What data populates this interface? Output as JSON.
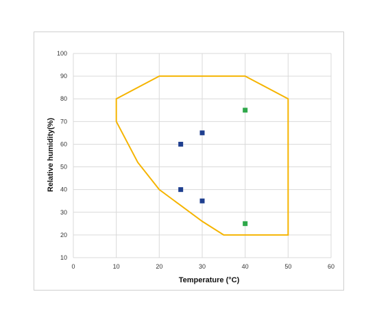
{
  "chart_data": {
    "type": "scatter",
    "title": "",
    "xlabel": "Temperature (°C)",
    "ylabel": "Relative humidity(%)",
    "xlim": [
      0,
      60
    ],
    "ylim": [
      10,
      100
    ],
    "x_ticks": [
      0,
      10,
      20,
      30,
      40,
      50,
      60
    ],
    "y_ticks": [
      10,
      20,
      30,
      40,
      50,
      60,
      70,
      80,
      90,
      100
    ],
    "grid": true,
    "legend": "none",
    "envelope": {
      "color": "#f5b400",
      "points": [
        [
          10,
          70
        ],
        [
          10,
          80
        ],
        [
          20,
          90
        ],
        [
          40,
          90
        ],
        [
          50,
          80
        ],
        [
          50,
          20
        ],
        [
          35,
          20
        ],
        [
          30,
          26
        ],
        [
          25,
          33
        ],
        [
          20,
          40
        ],
        [
          15,
          52
        ],
        [
          10,
          70
        ]
      ]
    },
    "series": [
      {
        "color": "#1f3f8f",
        "points": [
          [
            25,
            60
          ],
          [
            30,
            65
          ],
          [
            25,
            40
          ],
          [
            30,
            35
          ]
        ]
      },
      {
        "color": "#2ea84a",
        "points": [
          [
            40,
            75
          ],
          [
            40,
            25
          ]
        ]
      }
    ]
  }
}
